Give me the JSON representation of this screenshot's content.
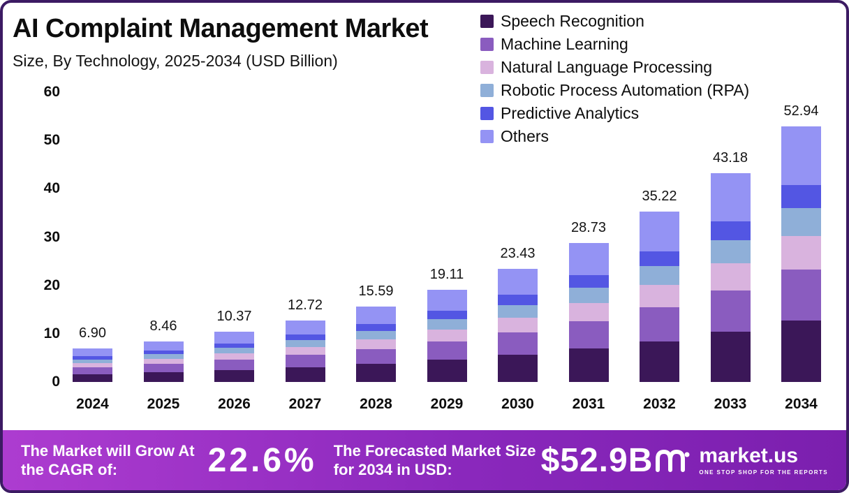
{
  "header": {
    "title": "AI Complaint Management Market",
    "subtitle": "Size, By Technology, 2025-2034 (USD Billion)"
  },
  "chart_data": {
    "type": "bar",
    "stacked": true,
    "title": "AI Complaint Management Market Size, By Technology, 2025-2034 (USD Billion)",
    "xlabel": "",
    "ylabel": "",
    "ylim": [
      0,
      60
    ],
    "yticks": [
      0,
      10,
      20,
      30,
      40,
      50,
      60
    ],
    "grid": false,
    "legend_position": "top-right",
    "categories": [
      "2024",
      "2025",
      "2026",
      "2027",
      "2028",
      "2029",
      "2030",
      "2031",
      "2032",
      "2033",
      "2034"
    ],
    "totals": [
      6.9,
      8.46,
      10.37,
      12.72,
      15.59,
      19.11,
      23.43,
      28.73,
      35.22,
      43.18,
      52.94
    ],
    "total_labels": [
      "6.90",
      "8.46",
      "10.37",
      "12.72",
      "15.59",
      "19.11",
      "23.43",
      "28.73",
      "35.22",
      "43.18",
      "52.94"
    ],
    "series": [
      {
        "name": "Speech Recognition",
        "color": "#3b1758",
        "values": [
          1.66,
          2.03,
          2.49,
          3.05,
          3.74,
          4.59,
          5.62,
          6.9,
          8.45,
          10.36,
          12.71
        ]
      },
      {
        "name": "Machine Learning",
        "color": "#8a5cbf",
        "values": [
          1.38,
          1.69,
          2.07,
          2.54,
          3.12,
          3.82,
          4.69,
          5.75,
          7.04,
          8.64,
          10.59
        ]
      },
      {
        "name": "Natural Language Processing",
        "color": "#d9b3de",
        "values": [
          0.9,
          1.1,
          1.35,
          1.65,
          2.03,
          2.48,
          3.05,
          3.73,
          4.58,
          5.61,
          6.88
        ]
      },
      {
        "name": "Robotic Process Automation (RPA)",
        "color": "#8fafd8",
        "values": [
          0.76,
          0.93,
          1.14,
          1.4,
          1.71,
          2.1,
          2.58,
          3.16,
          3.87,
          4.75,
          5.82
        ]
      },
      {
        "name": "Predictive Analytics",
        "color": "#5356e3",
        "values": [
          0.62,
          0.76,
          0.93,
          1.14,
          1.4,
          1.72,
          2.11,
          2.59,
          3.17,
          3.89,
          4.76
        ]
      },
      {
        "name": "Others",
        "color": "#9493f4",
        "values": [
          1.58,
          1.95,
          2.39,
          2.94,
          3.59,
          4.4,
          5.38,
          6.6,
          8.11,
          9.93,
          12.18
        ]
      }
    ]
  },
  "footer": {
    "cagr_label": "The Market will Grow At the CAGR of:",
    "cagr_value": "22.6%",
    "forecast_label": "The Forecasted Market Size for 2034 in USD:",
    "forecast_value": "$52.9B",
    "logo_text": "market.us",
    "logo_tagline": "ONE STOP SHOP FOR THE REPORTS"
  },
  "colors": {
    "frame_border": "#3c1b63",
    "footer_gradient_start": "#ad3cd0",
    "footer_gradient_end": "#7b1fae",
    "text": "#0d0d0d"
  }
}
